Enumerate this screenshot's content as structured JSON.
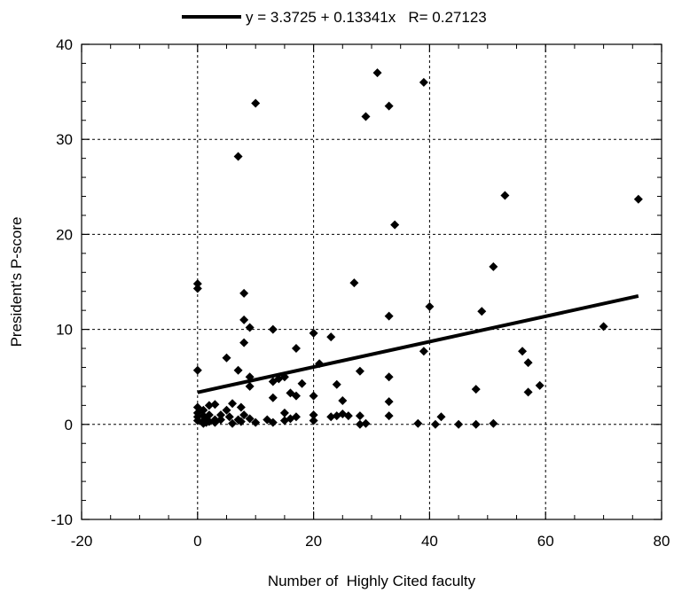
{
  "chart_data": {
    "type": "scatter",
    "xlabel": "Number of  Highly Cited faculty",
    "ylabel": "President's P-score",
    "xlim": [
      -20,
      80
    ],
    "ylim": [
      -10,
      40
    ],
    "xticks": [
      -20,
      0,
      20,
      40,
      60,
      80
    ],
    "yticks": [
      -10,
      0,
      10,
      20,
      30,
      40
    ],
    "grid": true,
    "legend_position": "top-center",
    "legend_label": "y = 3.3725 + 0.13341x   R= 0.27123",
    "fit_line": {
      "intercept": 3.3725,
      "slope": 0.13341,
      "x_range": [
        0,
        76
      ]
    },
    "colors": {
      "points": "#000000",
      "line": "#000000",
      "grid": "#000000"
    },
    "points": [
      [
        0,
        14.8
      ],
      [
        0,
        14.3
      ],
      [
        0,
        5.7
      ],
      [
        0,
        1.8
      ],
      [
        0,
        1.2
      ],
      [
        0,
        0.8
      ],
      [
        0,
        0.4
      ],
      [
        1,
        1.5
      ],
      [
        1,
        0.9
      ],
      [
        1,
        0.4
      ],
      [
        1,
        0.1
      ],
      [
        1.5,
        0.6
      ],
      [
        1.5,
        0.2
      ],
      [
        2,
        2.0
      ],
      [
        2,
        1.0
      ],
      [
        2,
        0.3
      ],
      [
        3,
        2.1
      ],
      [
        3,
        0.5
      ],
      [
        3,
        0.2
      ],
      [
        4,
        1.0
      ],
      [
        4,
        0.5
      ],
      [
        5,
        7.0
      ],
      [
        5,
        1.5
      ],
      [
        5.5,
        0.8
      ],
      [
        6,
        2.2
      ],
      [
        6,
        0.1
      ],
      [
        7,
        28.2
      ],
      [
        7,
        5.7
      ],
      [
        7,
        0.5
      ],
      [
        7.5,
        1.8
      ],
      [
        7.5,
        0.3
      ],
      [
        8,
        13.8
      ],
      [
        8,
        11.0
      ],
      [
        8,
        8.6
      ],
      [
        8,
        1.0
      ],
      [
        9,
        10.2
      ],
      [
        9,
        5.0
      ],
      [
        9,
        4.0
      ],
      [
        9,
        0.6
      ],
      [
        10,
        33.8
      ],
      [
        10,
        0.2
      ],
      [
        13,
        10.0
      ],
      [
        13,
        4.5
      ],
      [
        13,
        2.8
      ],
      [
        13,
        0.2
      ],
      [
        12,
        0.5
      ],
      [
        14,
        4.8
      ],
      [
        15,
        5.0
      ],
      [
        15,
        1.2
      ],
      [
        15,
        0.4
      ],
      [
        16,
        3.3
      ],
      [
        16,
        0.6
      ],
      [
        17,
        8.0
      ],
      [
        17,
        3.0
      ],
      [
        17,
        0.8
      ],
      [
        18,
        4.3
      ],
      [
        20,
        9.6
      ],
      [
        20,
        3.0
      ],
      [
        20,
        1.0
      ],
      [
        20,
        0.4
      ],
      [
        21,
        6.4
      ],
      [
        23,
        9.2
      ],
      [
        23,
        0.8
      ],
      [
        24,
        4.2
      ],
      [
        24,
        0.9
      ],
      [
        25,
        2.5
      ],
      [
        25,
        1.1
      ],
      [
        26,
        0.9
      ],
      [
        27,
        14.9
      ],
      [
        28,
        5.6
      ],
      [
        28,
        0.9
      ],
      [
        28,
        0.0
      ],
      [
        29,
        32.4
      ],
      [
        29,
        0.1
      ],
      [
        31,
        37.0
      ],
      [
        33,
        33.5
      ],
      [
        33,
        11.4
      ],
      [
        33,
        5.0
      ],
      [
        33,
        2.4
      ],
      [
        33,
        0.9
      ],
      [
        34,
        21.0
      ],
      [
        38,
        0.1
      ],
      [
        39,
        36.0
      ],
      [
        39,
        7.7
      ],
      [
        40,
        12.4
      ],
      [
        41,
        0.0
      ],
      [
        42,
        0.8
      ],
      [
        45,
        0.0
      ],
      [
        48,
        3.7
      ],
      [
        48,
        0.0
      ],
      [
        49,
        11.9
      ],
      [
        51,
        16.6
      ],
      [
        51,
        0.1
      ],
      [
        53,
        24.1
      ],
      [
        56,
        7.7
      ],
      [
        57,
        6.5
      ],
      [
        57,
        3.4
      ],
      [
        59,
        4.1
      ],
      [
        70,
        10.3
      ],
      [
        76,
        23.7
      ]
    ]
  }
}
